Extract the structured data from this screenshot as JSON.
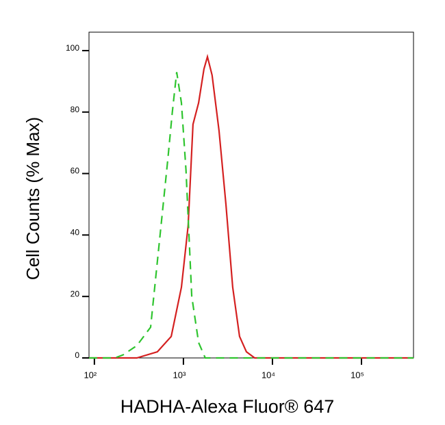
{
  "chart_data": {
    "type": "line",
    "log_x": true,
    "x_label": "HADHA-Alexa Fluor® 647",
    "y_label": "Cell Counts (% Max)",
    "xlim": [
      87,
      384000
    ],
    "ylim": [
      0,
      106
    ],
    "xticks": [
      {
        "value": 100,
        "label": "10²"
      },
      {
        "value": 1000,
        "label": "10³"
      },
      {
        "value": 10000,
        "label": "10⁴"
      },
      {
        "value": 100000,
        "label": "10⁵"
      }
    ],
    "yticks": [
      0,
      20,
      40,
      60,
      80,
      100
    ],
    "series": [
      {
        "color": "#d42020",
        "dash": false,
        "x": [
          87,
          300,
          510,
          730,
          950,
          1130,
          1280,
          1480,
          1700,
          1860,
          2100,
          2510,
          3000,
          3580,
          4270,
          5100,
          6310,
          384000
        ],
        "values": [
          0,
          0,
          2,
          7,
          23,
          43,
          76,
          83,
          94,
          98,
          92,
          74,
          50,
          23,
          7,
          2,
          0,
          0
        ]
      },
      {
        "color": "#2ec42e",
        "dash": true,
        "x": [
          87,
          170,
          210,
          300,
          428,
          560,
          670,
          750,
          840,
          950,
          1070,
          1240,
          1480,
          1760,
          384000
        ],
        "values": [
          0,
          0,
          1,
          4,
          10,
          43,
          65,
          80,
          93,
          83,
          61,
          20,
          5,
          0,
          0
        ]
      }
    ]
  }
}
